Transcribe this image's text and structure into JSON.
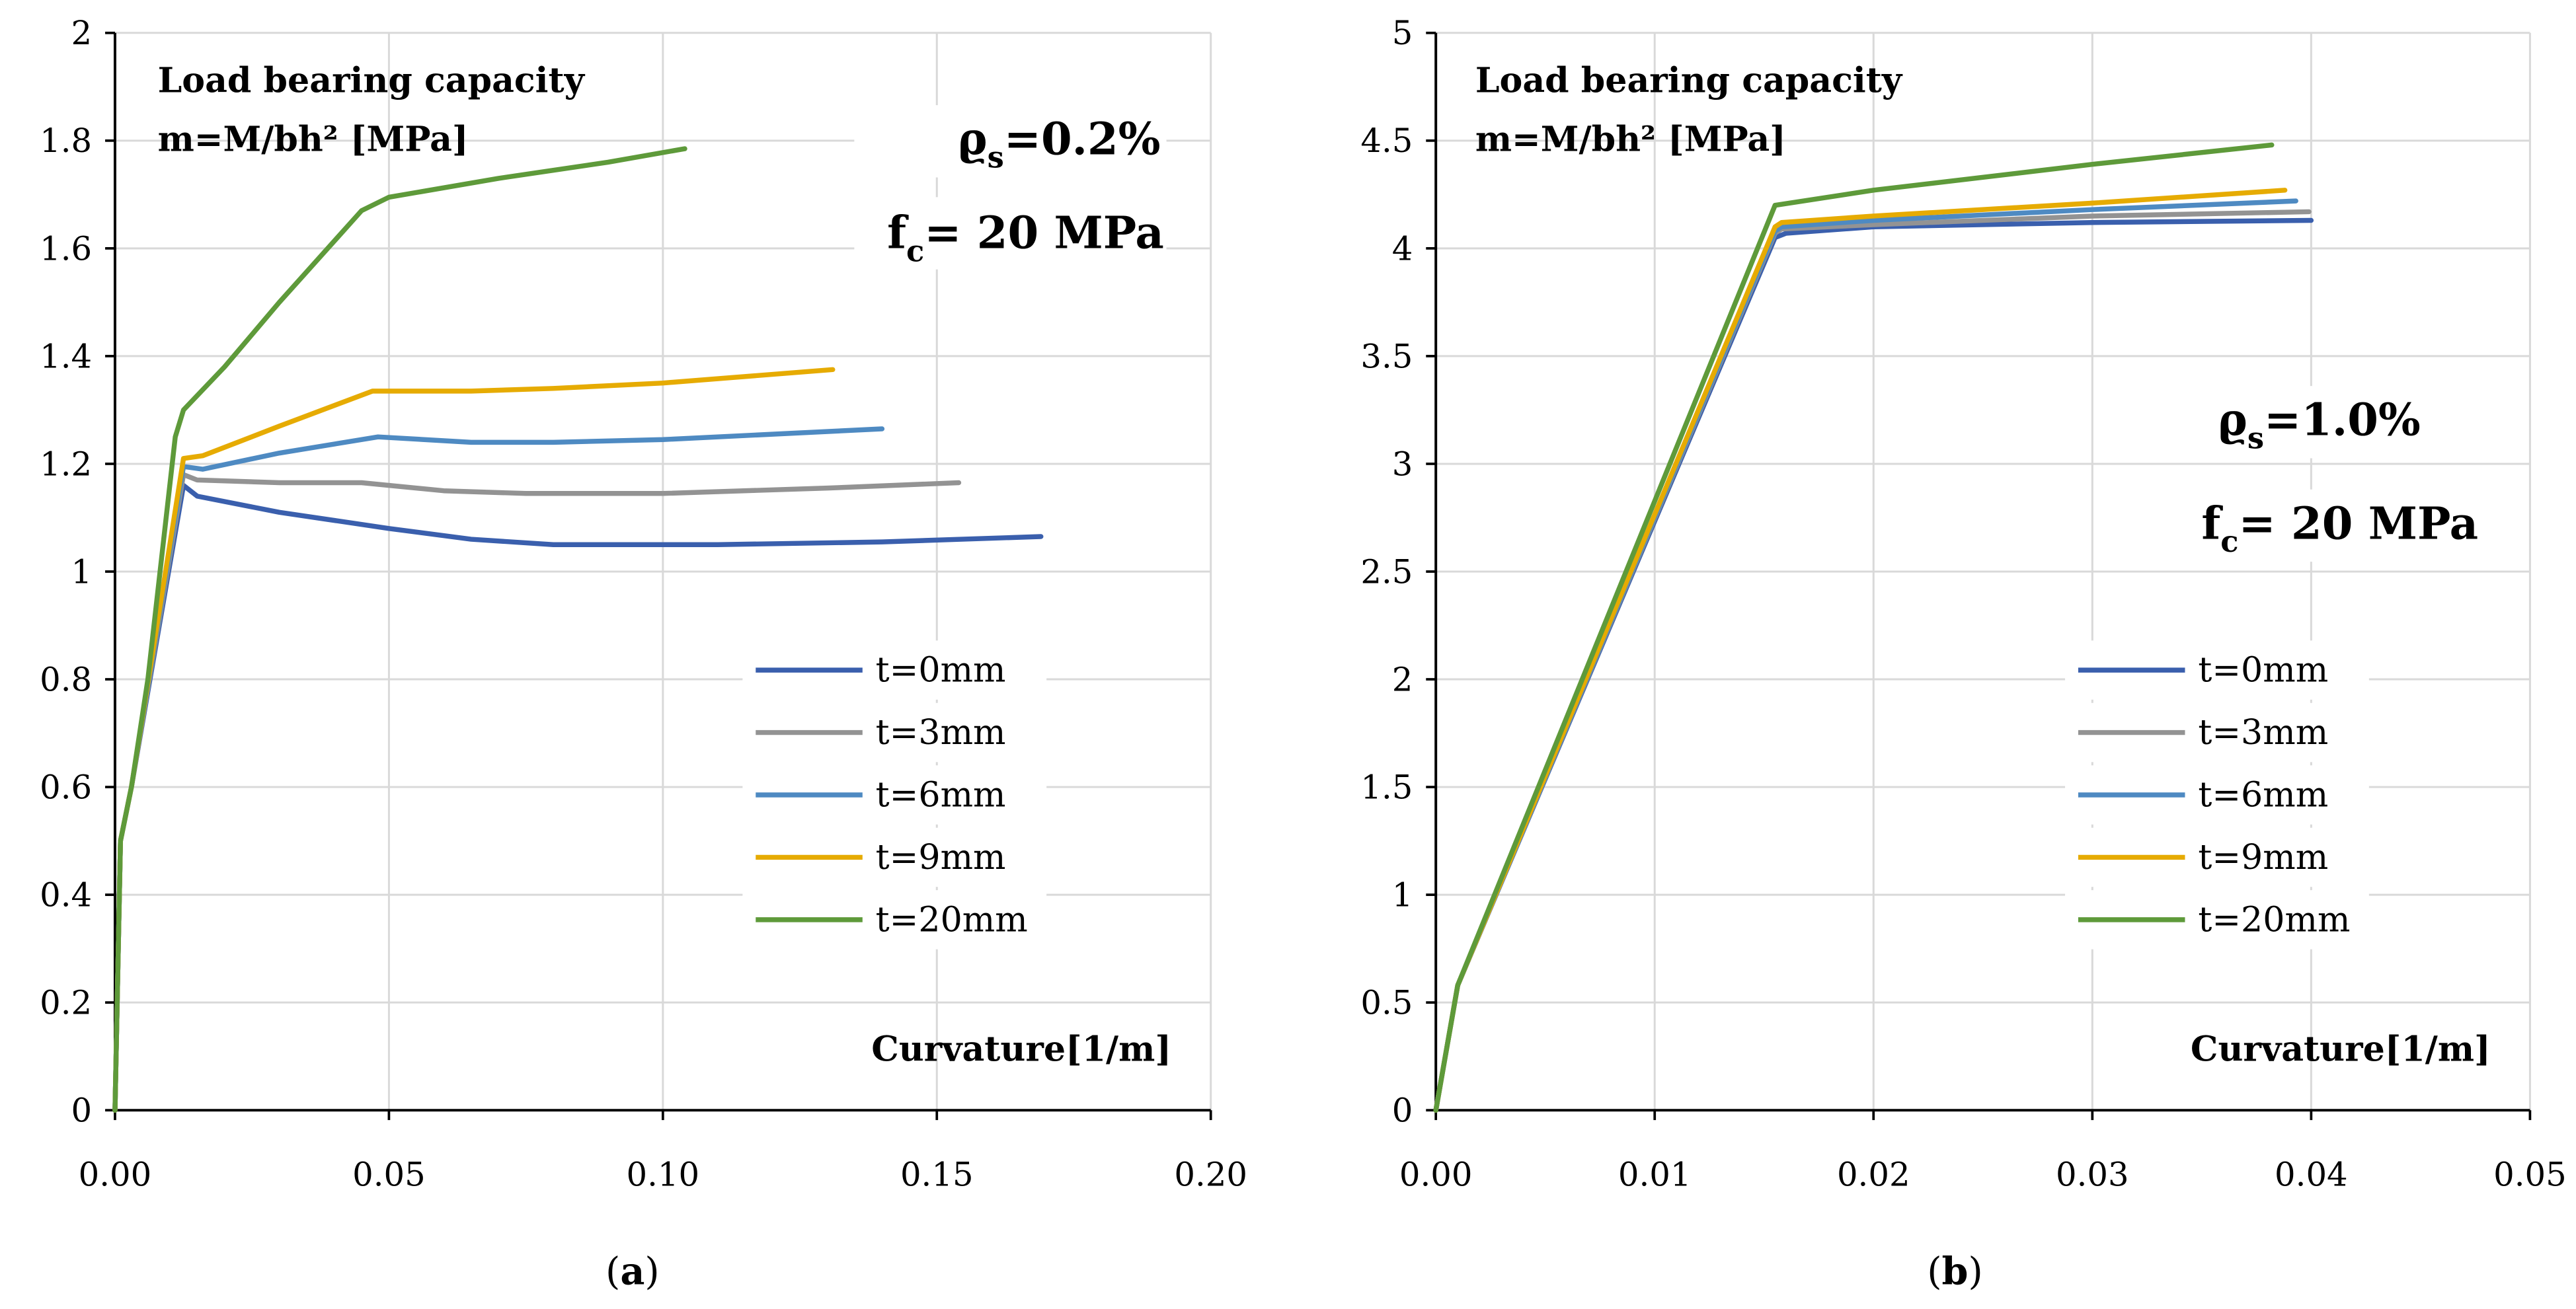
{
  "colors": {
    "t0": "#3a5fad",
    "t3": "#939393",
    "t6": "#4e8ac2",
    "t9": "#e6ab02",
    "t20": "#5e9a3a",
    "grid": "#d9d9d9",
    "axis": "#000000"
  },
  "chart_data": [
    {
      "type": "line",
      "caption_open": "(",
      "caption_letter": "a",
      "caption_close": ")",
      "ylabel_line1": "Load bearing capacity",
      "ylabel_line2": "m=M/bh² [MPa]",
      "xlabel": "Curvature[1/m]",
      "rho_symbol": "ϱ",
      "rho_sub": "s",
      "rho_value": "=0.2%",
      "fc_symbol": "f",
      "fc_sub": "c",
      "fc_value": "= 20 MPa",
      "xlim": [
        0,
        0.2
      ],
      "ylim": [
        0,
        2
      ],
      "xticks": [
        "0.00",
        "0.05",
        "0.10",
        "0.15",
        "0.20"
      ],
      "xtick_values": [
        0,
        0.05,
        0.1,
        0.15,
        0.2
      ],
      "yticks": [
        "0",
        "0.2",
        "0.4",
        "0.6",
        "0.8",
        "1",
        "1.2",
        "1.4",
        "1.6",
        "1.8",
        "2"
      ],
      "ytick_values": [
        0,
        0.2,
        0.4,
        0.6,
        0.8,
        1,
        1.2,
        1.4,
        1.6,
        1.8,
        2
      ],
      "grid": true,
      "legend_position": "center-right",
      "series": [
        {
          "name": "t=0mm",
          "color_key": "t0",
          "points": [
            [
              0,
              0
            ],
            [
              0.001,
              0.5
            ],
            [
              0.003,
              0.6
            ],
            [
              0.0125,
              1.16
            ],
            [
              0.015,
              1.14
            ],
            [
              0.03,
              1.11
            ],
            [
              0.05,
              1.08
            ],
            [
              0.065,
              1.06
            ],
            [
              0.08,
              1.05
            ],
            [
              0.11,
              1.05
            ],
            [
              0.14,
              1.055
            ],
            [
              0.169,
              1.065
            ]
          ]
        },
        {
          "name": "t=3mm",
          "color_key": "t3",
          "points": [
            [
              0,
              0
            ],
            [
              0.001,
              0.5
            ],
            [
              0.003,
              0.6
            ],
            [
              0.0125,
              1.18
            ],
            [
              0.015,
              1.17
            ],
            [
              0.03,
              1.165
            ],
            [
              0.045,
              1.165
            ],
            [
              0.06,
              1.15
            ],
            [
              0.075,
              1.145
            ],
            [
              0.1,
              1.145
            ],
            [
              0.13,
              1.155
            ],
            [
              0.154,
              1.165
            ]
          ]
        },
        {
          "name": "t=6mm",
          "color_key": "t6",
          "points": [
            [
              0,
              0
            ],
            [
              0.001,
              0.5
            ],
            [
              0.003,
              0.6
            ],
            [
              0.0125,
              1.195
            ],
            [
              0.016,
              1.19
            ],
            [
              0.03,
              1.22
            ],
            [
              0.048,
              1.25
            ],
            [
              0.065,
              1.24
            ],
            [
              0.08,
              1.24
            ],
            [
              0.1,
              1.245
            ],
            [
              0.12,
              1.255
            ],
            [
              0.14,
              1.265
            ]
          ]
        },
        {
          "name": "t=9mm",
          "color_key": "t9",
          "points": [
            [
              0,
              0
            ],
            [
              0.001,
              0.5
            ],
            [
              0.003,
              0.6
            ],
            [
              0.0125,
              1.21
            ],
            [
              0.016,
              1.215
            ],
            [
              0.03,
              1.27
            ],
            [
              0.047,
              1.335
            ],
            [
              0.065,
              1.335
            ],
            [
              0.08,
              1.34
            ],
            [
              0.1,
              1.35
            ],
            [
              0.131,
              1.375
            ]
          ]
        },
        {
          "name": "t=20mm",
          "color_key": "t20",
          "points": [
            [
              0,
              0
            ],
            [
              0.001,
              0.5
            ],
            [
              0.003,
              0.6
            ],
            [
              0.006,
              0.8
            ],
            [
              0.011,
              1.25
            ],
            [
              0.0125,
              1.3
            ],
            [
              0.02,
              1.38
            ],
            [
              0.03,
              1.5
            ],
            [
              0.045,
              1.67
            ],
            [
              0.05,
              1.695
            ],
            [
              0.07,
              1.73
            ],
            [
              0.09,
              1.76
            ],
            [
              0.104,
              1.785
            ]
          ]
        }
      ]
    },
    {
      "type": "line",
      "caption_open": "(",
      "caption_letter": "b",
      "caption_close": ")",
      "ylabel_line1": "Load bearing capacity",
      "ylabel_line2": "m=M/bh² [MPa]",
      "xlabel": "Curvature[1/m]",
      "rho_symbol": "ϱ",
      "rho_sub": "s",
      "rho_value": "=1.0%",
      "fc_symbol": "f",
      "fc_sub": "c",
      "fc_value": "= 20 MPa",
      "xlim": [
        0,
        0.05
      ],
      "ylim": [
        0,
        5
      ],
      "xticks": [
        "0.00",
        "0.01",
        "0.02",
        "0.03",
        "0.04",
        "0.05"
      ],
      "xtick_values": [
        0,
        0.01,
        0.02,
        0.03,
        0.04,
        0.05
      ],
      "yticks": [
        "0",
        "0.5",
        "1",
        "1.5",
        "2",
        "2.5",
        "3",
        "3.5",
        "4",
        "4.5",
        "5"
      ],
      "ytick_values": [
        0,
        0.5,
        1,
        1.5,
        2,
        2.5,
        3,
        3.5,
        4,
        4.5,
        5
      ],
      "grid": true,
      "legend_position": "center-right",
      "series": [
        {
          "name": "t=0mm",
          "color_key": "t0",
          "points": [
            [
              0,
              0
            ],
            [
              0.001,
              0.58
            ],
            [
              0.0155,
              4.05
            ],
            [
              0.016,
              4.07
            ],
            [
              0.02,
              4.1
            ],
            [
              0.03,
              4.12
            ],
            [
              0.04,
              4.13
            ]
          ]
        },
        {
          "name": "t=3mm",
          "color_key": "t3",
          "points": [
            [
              0,
              0
            ],
            [
              0.001,
              0.58
            ],
            [
              0.0155,
              4.07
            ],
            [
              0.0158,
              4.09
            ],
            [
              0.02,
              4.11
            ],
            [
              0.03,
              4.15
            ],
            [
              0.0399,
              4.17
            ]
          ]
        },
        {
          "name": "t=6mm",
          "color_key": "t6",
          "points": [
            [
              0,
              0
            ],
            [
              0.001,
              0.58
            ],
            [
              0.0155,
              4.08
            ],
            [
              0.0158,
              4.1
            ],
            [
              0.02,
              4.13
            ],
            [
              0.03,
              4.18
            ],
            [
              0.0393,
              4.22
            ]
          ]
        },
        {
          "name": "t=9mm",
          "color_key": "t9",
          "points": [
            [
              0,
              0
            ],
            [
              0.001,
              0.58
            ],
            [
              0.0155,
              4.1
            ],
            [
              0.0158,
              4.12
            ],
            [
              0.02,
              4.15
            ],
            [
              0.03,
              4.21
            ],
            [
              0.0388,
              4.27
            ]
          ]
        },
        {
          "name": "t=20mm",
          "color_key": "t20",
          "points": [
            [
              0,
              0
            ],
            [
              0.001,
              0.58
            ],
            [
              0.0153,
              4.15
            ],
            [
              0.0155,
              4.2
            ],
            [
              0.02,
              4.27
            ],
            [
              0.03,
              4.39
            ],
            [
              0.0382,
              4.48
            ]
          ]
        }
      ]
    }
  ]
}
